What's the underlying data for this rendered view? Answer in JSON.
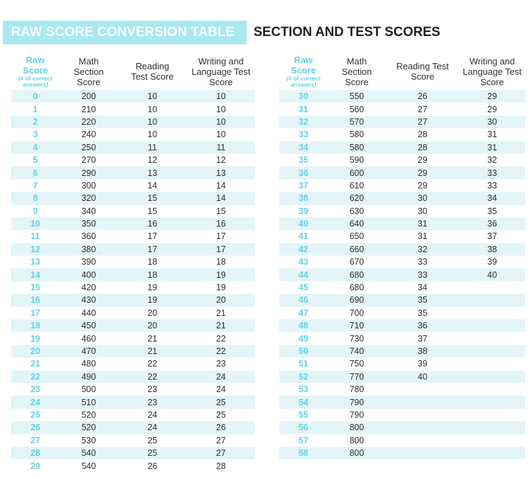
{
  "title_box": "RAW SCORE CONVERSION TABLE",
  "title_plain": "SECTION AND TEST SCORES",
  "headers": {
    "raw": "Raw Score",
    "raw_sub": "(# of correct answers)",
    "math": "Math Section Score",
    "reading_left": "Reading Test Score",
    "reading_right": "Reading Test Score",
    "writing": "Writing and Language Test Score"
  },
  "left_rows": [
    [
      "0",
      "200",
      "10",
      "10"
    ],
    [
      "1",
      "210",
      "10",
      "10"
    ],
    [
      "2",
      "220",
      "10",
      "10"
    ],
    [
      "3",
      "240",
      "10",
      "10"
    ],
    [
      "4",
      "250",
      "11",
      "11"
    ],
    [
      "5",
      "270",
      "12",
      "12"
    ],
    [
      "6",
      "290",
      "13",
      "13"
    ],
    [
      "7",
      "300",
      "14",
      "14"
    ],
    [
      "8",
      "320",
      "15",
      "14"
    ],
    [
      "9",
      "340",
      "15",
      "15"
    ],
    [
      "10",
      "350",
      "16",
      "16"
    ],
    [
      "11",
      "360",
      "17",
      "17"
    ],
    [
      "12",
      "380",
      "17",
      "17"
    ],
    [
      "13",
      "390",
      "18",
      "18"
    ],
    [
      "14",
      "400",
      "18",
      "19"
    ],
    [
      "15",
      "420",
      "19",
      "19"
    ],
    [
      "16",
      "430",
      "19",
      "20"
    ],
    [
      "17",
      "440",
      "20",
      "21"
    ],
    [
      "18",
      "450",
      "20",
      "21"
    ],
    [
      "19",
      "460",
      "21",
      "22"
    ],
    [
      "20",
      "470",
      "21",
      "22"
    ],
    [
      "21",
      "480",
      "22",
      "23"
    ],
    [
      "22",
      "490",
      "22",
      "24"
    ],
    [
      "23",
      "500",
      "23",
      "24"
    ],
    [
      "24",
      "510",
      "23",
      "25"
    ],
    [
      "25",
      "520",
      "24",
      "25"
    ],
    [
      "26",
      "520",
      "24",
      "26"
    ],
    [
      "27",
      "530",
      "25",
      "27"
    ],
    [
      "28",
      "540",
      "25",
      "27"
    ],
    [
      "29",
      "540",
      "26",
      "28"
    ]
  ],
  "right_rows": [
    [
      "30",
      "550",
      "26",
      "29"
    ],
    [
      "31",
      "560",
      "27",
      "29"
    ],
    [
      "32",
      "570",
      "27",
      "30"
    ],
    [
      "33",
      "580",
      "28",
      "31"
    ],
    [
      "34",
      "580",
      "28",
      "31"
    ],
    [
      "35",
      "590",
      "29",
      "32"
    ],
    [
      "36",
      "600",
      "29",
      "33"
    ],
    [
      "37",
      "610",
      "29",
      "33"
    ],
    [
      "38",
      "620",
      "30",
      "34"
    ],
    [
      "39",
      "630",
      "30",
      "35"
    ],
    [
      "40",
      "640",
      "31",
      "36"
    ],
    [
      "41",
      "650",
      "31",
      "37"
    ],
    [
      "42",
      "660",
      "32",
      "38"
    ],
    [
      "43",
      "670",
      "33",
      "39"
    ],
    [
      "44",
      "680",
      "33",
      "40"
    ],
    [
      "45",
      "680",
      "34",
      ""
    ],
    [
      "46",
      "690",
      "35",
      ""
    ],
    [
      "47",
      "700",
      "35",
      ""
    ],
    [
      "48",
      "710",
      "36",
      ""
    ],
    [
      "49",
      "730",
      "37",
      ""
    ],
    [
      "50",
      "740",
      "38",
      ""
    ],
    [
      "51",
      "750",
      "39",
      ""
    ],
    [
      "52",
      "770",
      "40",
      ""
    ],
    [
      "53",
      "780",
      "",
      ""
    ],
    [
      "54",
      "790",
      "",
      ""
    ],
    [
      "55",
      "790",
      "",
      ""
    ],
    [
      "56",
      "800",
      "",
      ""
    ],
    [
      "57",
      "800",
      "",
      ""
    ],
    [
      "58",
      "800",
      "",
      ""
    ]
  ],
  "colors": {
    "accent": "#62d2e3",
    "title_bg": "#a9e8f1",
    "row_shade": "#e3f5f9"
  }
}
